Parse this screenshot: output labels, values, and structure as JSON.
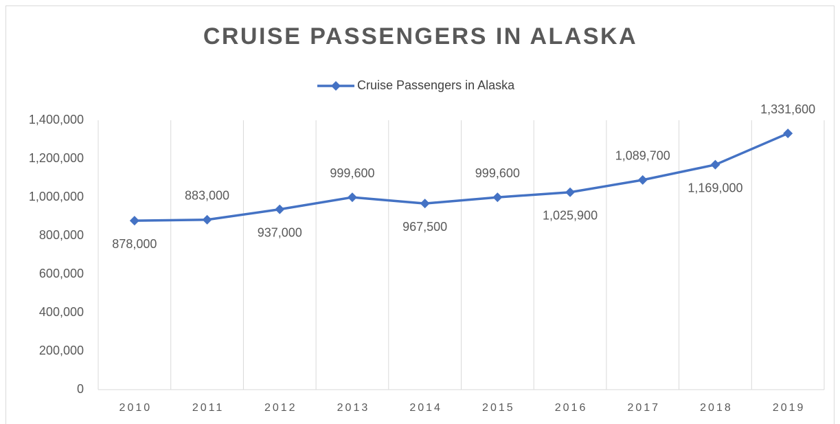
{
  "chart_data": {
    "type": "line",
    "title": "CRUISE PASSENGERS IN ALASKA",
    "categories": [
      "2010",
      "2011",
      "2012",
      "2013",
      "2014",
      "2015",
      "2016",
      "2017",
      "2018",
      "2019"
    ],
    "series": [
      {
        "name": "Cruise Passengers in Alaska",
        "color": "#4472c4",
        "values": [
          878000,
          883000,
          937000,
          999600,
          967500,
          999600,
          1025900,
          1089700,
          1169000,
          1331600
        ],
        "value_labels": [
          "878,000",
          "883,000",
          "937,000",
          "999,600",
          "967,500",
          "999,600",
          "1,025,900",
          "1,089,700",
          "1,169,000",
          "1,331,600"
        ]
      }
    ],
    "ylim": [
      0,
      1400000
    ],
    "yticks": [
      0,
      {
        "value": 200000,
        "label": "200,000"
      },
      {
        "value": 400000,
        "label": "400,000"
      },
      {
        "value": 600000,
        "label": "600,000"
      },
      {
        "value": 800000,
        "label": "800,000"
      },
      {
        "value": 1000000,
        "label": "1,000,000"
      },
      {
        "value": 1200000,
        "label": "1,200,000"
      },
      {
        "value": 1400000,
        "label": "1,400,000"
      }
    ],
    "grid": true,
    "legend": "top"
  }
}
